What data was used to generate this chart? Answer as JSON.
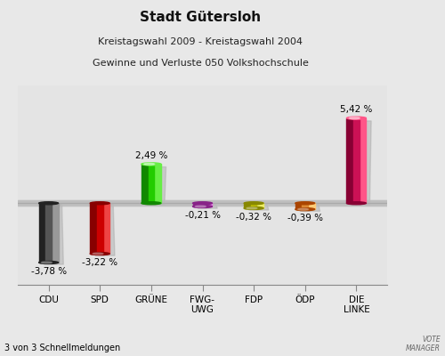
{
  "title": "Stadt Gütersloh",
  "subtitle1": "Kreistagswahl 2009 - Kreistagswahl 2004",
  "subtitle2": "Gewinne und Verluste 050 Volkshochschule",
  "footer": "3 von 3 Schnellmeldungen",
  "categories": [
    "CDU",
    "SPD",
    "GRÜNE",
    "FWG-\nUWG",
    "FDP",
    "ÖDP",
    "DIE\nLINKE"
  ],
  "values": [
    -3.78,
    -3.22,
    2.49,
    -0.21,
    -0.32,
    -0.39,
    5.42
  ],
  "labels": [
    "-3,78 %",
    "-3,22 %",
    "2,49 %",
    "-0,21 %",
    "-0,32 %",
    "-0,39 %",
    "5,42 %"
  ],
  "bar_colors_main": [
    "#555555",
    "#cc0000",
    "#22cc00",
    "#cc44cc",
    "#cccc00",
    "#dd8833",
    "#cc1155"
  ],
  "bar_colors_light": [
    "#999999",
    "#ee4444",
    "#66ee44",
    "#ee88ee",
    "#eeee66",
    "#ffcc77",
    "#ff5588"
  ],
  "bar_colors_dark": [
    "#222222",
    "#880000",
    "#118800",
    "#882288",
    "#888800",
    "#aa4400",
    "#880033"
  ],
  "background_top": "#f0f0f0",
  "background_bottom": "#d0d0d0",
  "zero_band_color": "#bbbbbb",
  "title_fontsize": 11,
  "subtitle_fontsize": 8,
  "label_fontsize": 7.5,
  "category_fontsize": 7.5,
  "bar_width": 0.38,
  "ylim": [
    -5.2,
    7.5
  ]
}
